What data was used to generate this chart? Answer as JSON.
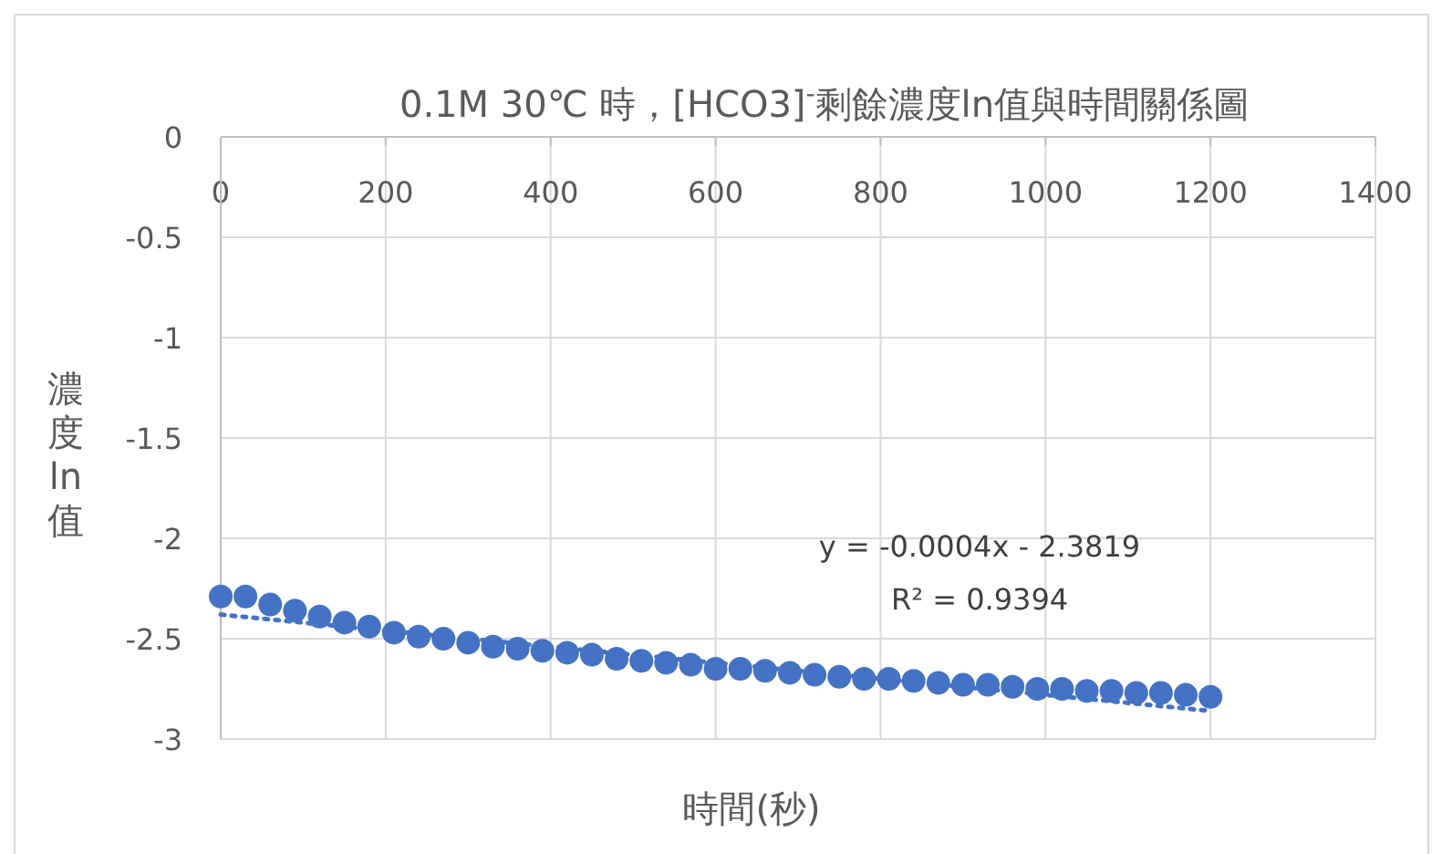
{
  "chart_data": {
    "type": "scatter",
    "title": "0.1M 30℃ 時，[HCO3]$^{-}$剩餘濃度ln值與時間關係圖",
    "xlabel": "時間(秒)",
    "ylabel": "濃度ln值",
    "xlim": [
      0,
      1400
    ],
    "xticks": [
      0,
      200,
      400,
      600,
      800,
      1000,
      1200,
      1400
    ],
    "ylim": [
      -3,
      0
    ],
    "yticks": [
      -3,
      -2.5,
      -2,
      -1.5,
      -1,
      -0.5,
      0
    ],
    "grid": true,
    "marker": "circle",
    "annotations": [
      "y = -0.0004x - 2.3819",
      "R² = 0.9394"
    ],
    "series": [
      {
        "color": "#4472c4",
        "x": [
          0,
          30,
          60,
          90,
          120,
          150,
          180,
          210,
          240,
          270,
          300,
          330,
          360,
          390,
          420,
          450,
          480,
          510,
          540,
          570,
          600,
          630,
          660,
          690,
          720,
          750,
          780,
          810,
          840,
          870,
          900,
          930,
          960,
          990,
          1020,
          1050,
          1080,
          1110,
          1140,
          1170,
          1200
        ],
        "values": [
          -2.29,
          -2.29,
          -2.33,
          -2.36,
          -2.39,
          -2.42,
          -2.44,
          -2.47,
          -2.49,
          -2.5,
          -2.52,
          -2.54,
          -2.55,
          -2.56,
          -2.57,
          -2.58,
          -2.6,
          -2.61,
          -2.62,
          -2.63,
          -2.65,
          -2.65,
          -2.66,
          -2.67,
          -2.68,
          -2.69,
          -2.7,
          -2.7,
          -2.71,
          -2.72,
          -2.73,
          -2.73,
          -2.74,
          -2.75,
          -2.75,
          -2.76,
          -2.76,
          -2.77,
          -2.77,
          -2.78,
          -2.79
        ]
      },
      {
        "type": "line",
        "marker": "none",
        "line_style": "dotted",
        "color": "#4472c4",
        "x": [
          0,
          1200
        ],
        "values": [
          -2.38,
          -2.86
        ]
      }
    ]
  }
}
